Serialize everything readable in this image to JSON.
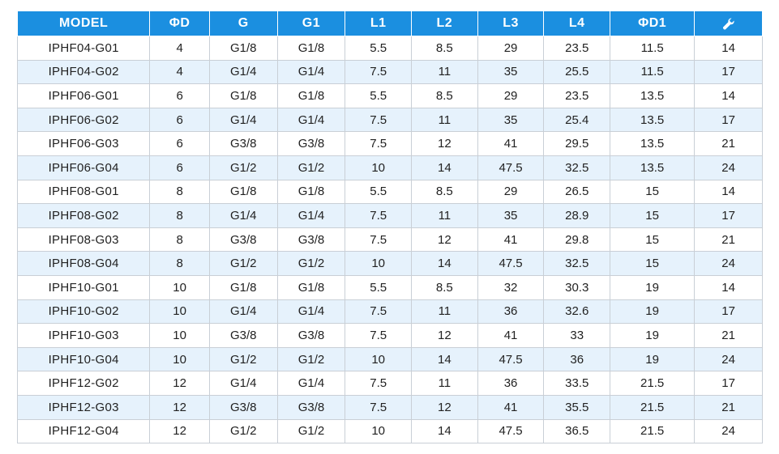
{
  "headers": [
    "MODEL",
    "ΦD",
    "G",
    "G1",
    "L1",
    "L2",
    "L3",
    "L4",
    "ΦD1"
  ],
  "last_header_icon": "wrench-icon",
  "rows": [
    [
      "IPHF04-G01",
      "4",
      "G1/8",
      "G1/8",
      "5.5",
      "8.5",
      "29",
      "23.5",
      "11.5",
      "14"
    ],
    [
      "IPHF04-G02",
      "4",
      "G1/4",
      "G1/4",
      "7.5",
      "11",
      "35",
      "25.5",
      "11.5",
      "17"
    ],
    [
      "IPHF06-G01",
      "6",
      "G1/8",
      "G1/8",
      "5.5",
      "8.5",
      "29",
      "23.5",
      "13.5",
      "14"
    ],
    [
      "IPHF06-G02",
      "6",
      "G1/4",
      "G1/4",
      "7.5",
      "11",
      "35",
      "25.4",
      "13.5",
      "17"
    ],
    [
      "IPHF06-G03",
      "6",
      "G3/8",
      "G3/8",
      "7.5",
      "12",
      "41",
      "29.5",
      "13.5",
      "21"
    ],
    [
      "IPHF06-G04",
      "6",
      "G1/2",
      "G1/2",
      "10",
      "14",
      "47.5",
      "32.5",
      "13.5",
      "24"
    ],
    [
      "IPHF08-G01",
      "8",
      "G1/8",
      "G1/8",
      "5.5",
      "8.5",
      "29",
      "26.5",
      "15",
      "14"
    ],
    [
      "IPHF08-G02",
      "8",
      "G1/4",
      "G1/4",
      "7.5",
      "11",
      "35",
      "28.9",
      "15",
      "17"
    ],
    [
      "IPHF08-G03",
      "8",
      "G3/8",
      "G3/8",
      "7.5",
      "12",
      "41",
      "29.8",
      "15",
      "21"
    ],
    [
      "IPHF08-G04",
      "8",
      "G1/2",
      "G1/2",
      "10",
      "14",
      "47.5",
      "32.5",
      "15",
      "24"
    ],
    [
      "IPHF10-G01",
      "10",
      "G1/8",
      "G1/8",
      "5.5",
      "8.5",
      "32",
      "30.3",
      "19",
      "14"
    ],
    [
      "IPHF10-G02",
      "10",
      "G1/4",
      "G1/4",
      "7.5",
      "11",
      "36",
      "32.6",
      "19",
      "17"
    ],
    [
      "IPHF10-G03",
      "10",
      "G3/8",
      "G3/8",
      "7.5",
      "12",
      "41",
      "33",
      "19",
      "21"
    ],
    [
      "IPHF10-G04",
      "10",
      "G1/2",
      "G1/2",
      "10",
      "14",
      "47.5",
      "36",
      "19",
      "24"
    ],
    [
      "IPHF12-G02",
      "12",
      "G1/4",
      "G1/4",
      "7.5",
      "11",
      "36",
      "33.5",
      "21.5",
      "17"
    ],
    [
      "IPHF12-G03",
      "12",
      "G3/8",
      "G3/8",
      "7.5",
      "12",
      "41",
      "35.5",
      "21.5",
      "21"
    ],
    [
      "IPHF12-G04",
      "12",
      "G1/2",
      "G1/2",
      "10",
      "14",
      "47.5",
      "36.5",
      "21.5",
      "24"
    ]
  ],
  "colors": {
    "header_bg": "#1b8fe0",
    "stripe_bg": "#e6f2fc",
    "border": "#c9cfd6"
  }
}
